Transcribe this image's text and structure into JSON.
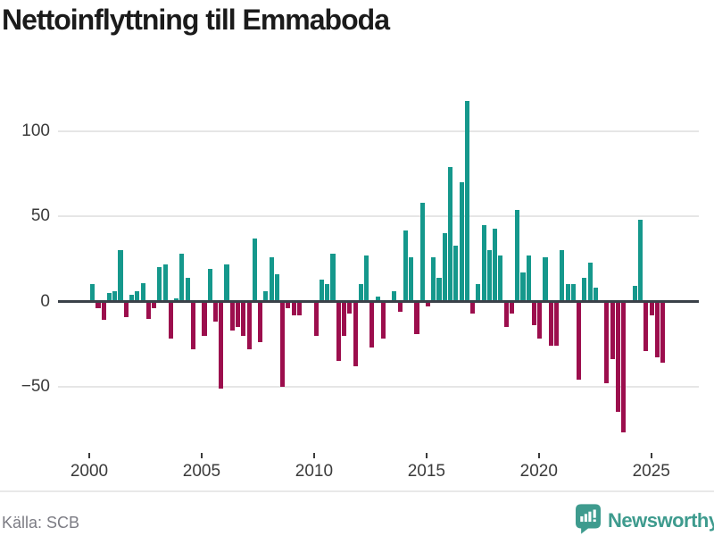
{
  "header": {
    "title": "Nettoinflyttning till Emmaboda"
  },
  "chart_data": {
    "type": "bar",
    "title": "Nettoinflyttning till Emmaboda",
    "frequency": "quarterly",
    "start": "2000 Q1",
    "end": "2025 Q3",
    "x_tick_labels": [
      "2000",
      "2005",
      "2010",
      "2015",
      "2020",
      "2025"
    ],
    "y_ticks": [
      100,
      50,
      0,
      -50
    ],
    "y_tick_labels": [
      "100",
      "50",
      "0",
      "−50"
    ],
    "ylim": [
      -85,
      125
    ],
    "grid": "horizontal",
    "legend": "none",
    "colors": {
      "positive": "#15988c",
      "negative": "#9c0e4d",
      "zero_axis": "#3a4149"
    },
    "values_by_year": {
      "2000": [
        10,
        -4,
        -11,
        5
      ],
      "2001": [
        6,
        30,
        -9,
        4
      ],
      "2002": [
        6,
        11,
        -10,
        -4
      ],
      "2003": [
        20,
        22,
        -22,
        2
      ],
      "2004": [
        28,
        14,
        -28,
        0
      ],
      "2005": [
        -20,
        19,
        -12,
        -51
      ],
      "2006": [
        22,
        -17,
        -15,
        -20
      ],
      "2007": [
        -28,
        37,
        -24,
        6
      ],
      "2008": [
        26,
        16,
        -50,
        -4
      ],
      "2009": [
        -8,
        -8,
        0,
        1
      ],
      "2010": [
        -20,
        13,
        10,
        28
      ],
      "2011": [
        -35,
        -20,
        -7,
        -38
      ],
      "2012": [
        10,
        27,
        -27,
        3
      ],
      "2013": [
        -22,
        1,
        6,
        -6
      ],
      "2014": [
        42,
        26,
        -19,
        58
      ],
      "2015": [
        -3,
        26,
        14,
        40
      ],
      "2016": [
        79,
        33,
        70,
        118
      ],
      "2017": [
        -7,
        10,
        45,
        30
      ],
      "2018": [
        43,
        27,
        -15,
        -7
      ],
      "2019": [
        54,
        17,
        27,
        -14
      ],
      "2020": [
        -22,
        26,
        -26,
        -26
      ],
      "2021": [
        30,
        10,
        10,
        -46
      ],
      "2022": [
        14,
        23,
        8,
        1
      ],
      "2023": [
        -48,
        -34,
        -65,
        -77
      ],
      "2024": [
        0,
        9,
        48,
        -29
      ],
      "2025": [
        -8,
        -33,
        -36
      ]
    }
  },
  "footer": {
    "source_label": "Källa: SCB",
    "brand": "Newsworthy"
  }
}
